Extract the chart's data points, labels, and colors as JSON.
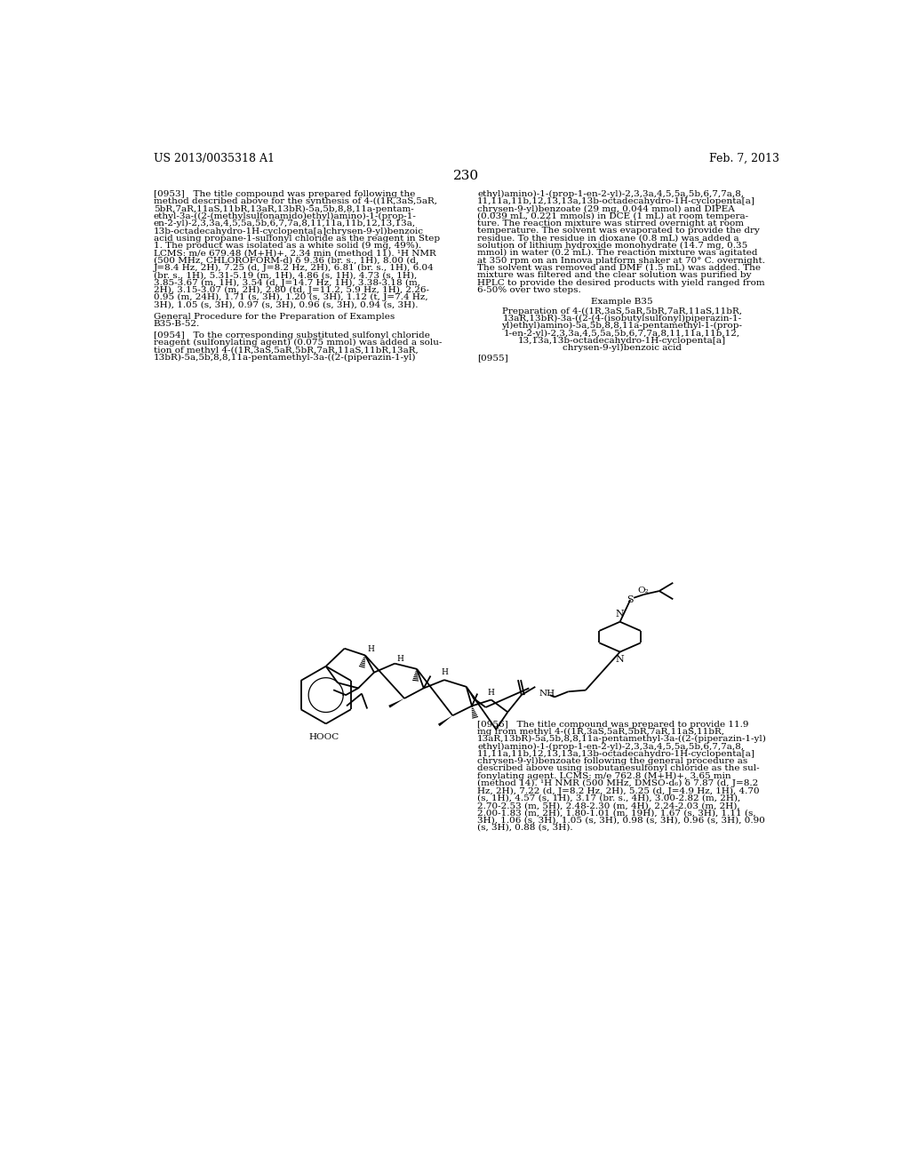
{
  "background_color": "#ffffff",
  "header_left": "US 2013/0035318 A1",
  "header_right": "Feb. 7, 2013",
  "page_number": "230",
  "fig_width": 10.24,
  "fig_height": 13.2,
  "dpi": 100
}
